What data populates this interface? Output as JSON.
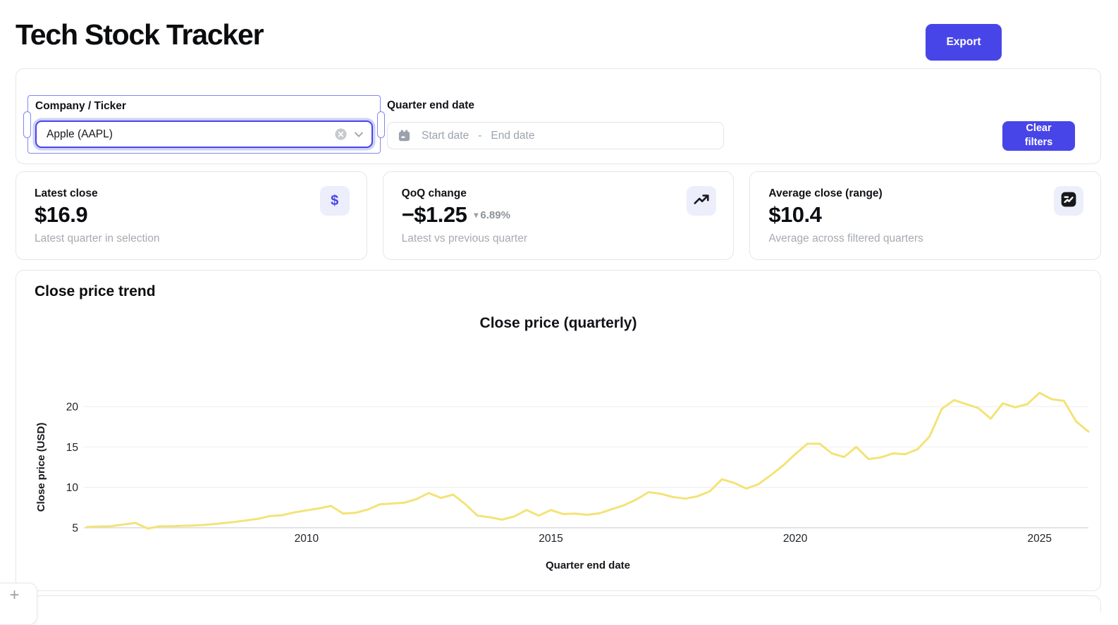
{
  "header": {
    "title": "Tech Stock Tracker",
    "export_label": "Export"
  },
  "filters": {
    "company_label": "Company / Ticker",
    "company_value": "Apple (AAPL)",
    "date_label": "Quarter end date",
    "date_placeholder_start": "Start date",
    "date_placeholder_separator": "-",
    "date_placeholder_end": "End date",
    "clear_label": "Clear filters"
  },
  "stats": [
    {
      "label": "Latest close",
      "value": "$16.9",
      "sub": "Latest quarter in selection",
      "icon": "dollar-icon"
    },
    {
      "label": "QoQ change",
      "value": "−$1.25",
      "delta_caret": "▾",
      "delta": "6.89%",
      "delta_direction": "down",
      "sub": "Latest vs previous quarter",
      "icon": "trending-up-icon"
    },
    {
      "label": "Average close (range)",
      "value": "$10.4",
      "sub": "Average across filtered quarters",
      "icon": "chart-line-icon"
    }
  ],
  "section": {
    "heading": "Close price trend"
  },
  "chart_data": {
    "type": "line",
    "title": "Close price (quarterly)",
    "xlabel": "Quarter end date",
    "ylabel": "Close price (USD)",
    "x_unit": "quarter end, decimal year",
    "x_start": 2005.5,
    "x_step": 0.25,
    "x_end": 2026.0,
    "x_ticks": [
      2010,
      2015,
      2020,
      2025
    ],
    "y_ticks": [
      5,
      10,
      15,
      20
    ],
    "ylim": [
      3.5,
      22.5
    ],
    "grid": "horizontal only",
    "legend": "none",
    "line_color": "#f3e377",
    "values": [
      5.1,
      5.15,
      5.2,
      5.4,
      5.6,
      4.9,
      5.2,
      5.2,
      5.25,
      5.3,
      5.4,
      5.55,
      5.7,
      5.9,
      6.1,
      6.45,
      6.55,
      6.9,
      7.15,
      7.4,
      7.7,
      6.75,
      6.85,
      7.25,
      7.9,
      8.0,
      8.1,
      8.55,
      9.3,
      8.7,
      9.1,
      7.9,
      6.5,
      6.3,
      6.0,
      6.4,
      7.2,
      6.5,
      7.2,
      6.7,
      6.75,
      6.6,
      6.8,
      7.3,
      7.8,
      8.5,
      9.4,
      9.2,
      8.8,
      8.6,
      8.9,
      9.5,
      11.0,
      10.55,
      9.85,
      10.4,
      11.5,
      12.7,
      14.1,
      15.4,
      15.4,
      14.2,
      13.75,
      15.0,
      13.5,
      13.7,
      14.2,
      14.1,
      14.7,
      16.3,
      19.7,
      20.8,
      20.3,
      19.8,
      18.5,
      20.4,
      19.9,
      20.3,
      21.7,
      20.9,
      20.7,
      18.15,
      16.9
    ]
  },
  "floating": {
    "add_label": "+"
  },
  "colors": {
    "accent": "#4845e8",
    "chart_line": "#f3e377",
    "icon_tile_bg": "#eceefb",
    "selection_outline": "#8287f2",
    "card_border": "#e5e7eb"
  }
}
